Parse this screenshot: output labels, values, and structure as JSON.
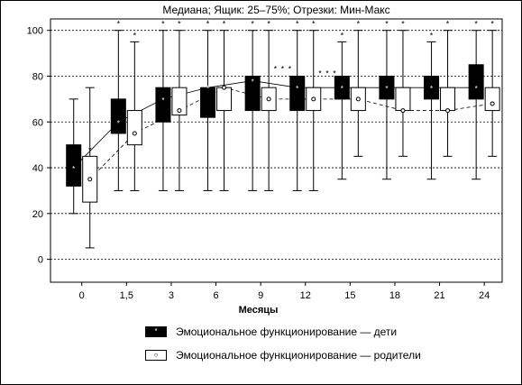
{
  "chart_data": {
    "type": "boxplot",
    "title": "Медиана; Ящик: 25–75%; Отрезки: Мин-Макс",
    "xlabel": "Месяцы",
    "ylabel": "",
    "ylim": [
      -10,
      105
    ],
    "yticks": [
      0,
      20,
      40,
      60,
      80,
      100
    ],
    "grid": "horizontal",
    "categories": [
      "0",
      "1,5",
      "3",
      "6",
      "9",
      "12",
      "15",
      "18",
      "21",
      "24"
    ],
    "series": [
      {
        "name": "Эмоциональное функционирование — дети",
        "color": "#000000",
        "connector": "solid",
        "stats": [
          {
            "min": 20,
            "q1": 32,
            "median": 40,
            "q3": 50,
            "max": 70
          },
          {
            "min": 30,
            "q1": 55,
            "median": 60,
            "q3": 70,
            "max": 100
          },
          {
            "min": 30,
            "q1": 60,
            "median": 70,
            "q3": 75,
            "max": 100
          },
          {
            "min": 30,
            "q1": 62,
            "median": 75,
            "q3": 75,
            "max": 100
          },
          {
            "min": 30,
            "q1": 65,
            "median": 78,
            "q3": 80,
            "max": 100
          },
          {
            "min": 30,
            "q1": 65,
            "median": 75,
            "q3": 80,
            "max": 100
          },
          {
            "min": 35,
            "q1": 70,
            "median": 75,
            "q3": 80,
            "max": 95
          },
          {
            "min": 35,
            "q1": 70,
            "median": 75,
            "q3": 80,
            "max": 100
          },
          {
            "min": 35,
            "q1": 70,
            "median": 75,
            "q3": 80,
            "max": 95
          },
          {
            "min": 35,
            "q1": 70,
            "median": 75,
            "q3": 85,
            "max": 100
          }
        ]
      },
      {
        "name": "Эмоциональное функционирование — родители",
        "color": "#ffffff",
        "connector": "dashed",
        "stats": [
          {
            "min": 5,
            "q1": 25,
            "median": 35,
            "q3": 45,
            "max": 75
          },
          {
            "min": 30,
            "q1": 50,
            "median": 55,
            "q3": 65,
            "max": 95
          },
          {
            "min": 30,
            "q1": 63,
            "median": 65,
            "q3": 75,
            "max": 100
          },
          {
            "min": 30,
            "q1": 65,
            "median": 75,
            "q3": 75,
            "max": 100
          },
          {
            "min": 30,
            "q1": 65,
            "median": 70,
            "q3": 75,
            "max": 100
          },
          {
            "min": 30,
            "q1": 65,
            "median": 70,
            "q3": 75,
            "max": 100
          },
          {
            "min": 45,
            "q1": 65,
            "median": 70,
            "q3": 75,
            "max": 100
          },
          {
            "min": 45,
            "q1": 65,
            "median": 65,
            "q3": 75,
            "max": 100
          },
          {
            "min": 45,
            "q1": 65,
            "median": 65,
            "q3": 75,
            "max": 100
          },
          {
            "min": 45,
            "q1": 65,
            "median": 68,
            "q3": 75,
            "max": 100
          }
        ]
      }
    ],
    "significance": {
      "single": [
        {
          "category": "1,5",
          "series": 0,
          "value": 100
        },
        {
          "category": "1,5",
          "series": 1,
          "value": 95
        },
        {
          "category": "0",
          "series": 1,
          "value": 45
        },
        {
          "category": "3",
          "series": 0,
          "value": 100
        },
        {
          "category": "3",
          "series": 1,
          "value": 100
        },
        {
          "category": "6",
          "series": 0,
          "value": 100
        },
        {
          "category": "6",
          "series": 1,
          "value": 100
        },
        {
          "category": "9",
          "series": 0,
          "value": 100
        },
        {
          "category": "9",
          "series": 1,
          "value": 100
        },
        {
          "category": "12",
          "series": 0,
          "value": 100
        },
        {
          "category": "12",
          "series": 1,
          "value": 100
        },
        {
          "category": "15",
          "series": 0,
          "value": 95
        },
        {
          "category": "15",
          "series": 1,
          "value": 100
        },
        {
          "category": "18",
          "series": 0,
          "value": 100
        },
        {
          "category": "18",
          "series": 1,
          "value": 100
        },
        {
          "category": "21",
          "series": 0,
          "value": 95
        },
        {
          "category": "21",
          "series": 1,
          "value": 100
        },
        {
          "category": "24",
          "series": 0,
          "value": 100
        },
        {
          "category": "24",
          "series": 1,
          "value": 100
        }
      ],
      "triple_label": "* * *",
      "triple": [
        {
          "between": [
            "9",
            "12"
          ],
          "value": 82
        },
        {
          "between": [
            "12",
            "15"
          ],
          "value": 80
        }
      ]
    },
    "legend": {
      "placement": "bottom",
      "entries": [
        {
          "label": "Эмоциональное функционирование — дети",
          "marker": "*"
        },
        {
          "label": "Эмоциональное функционирование — родители",
          "marker": "○"
        }
      ]
    }
  }
}
